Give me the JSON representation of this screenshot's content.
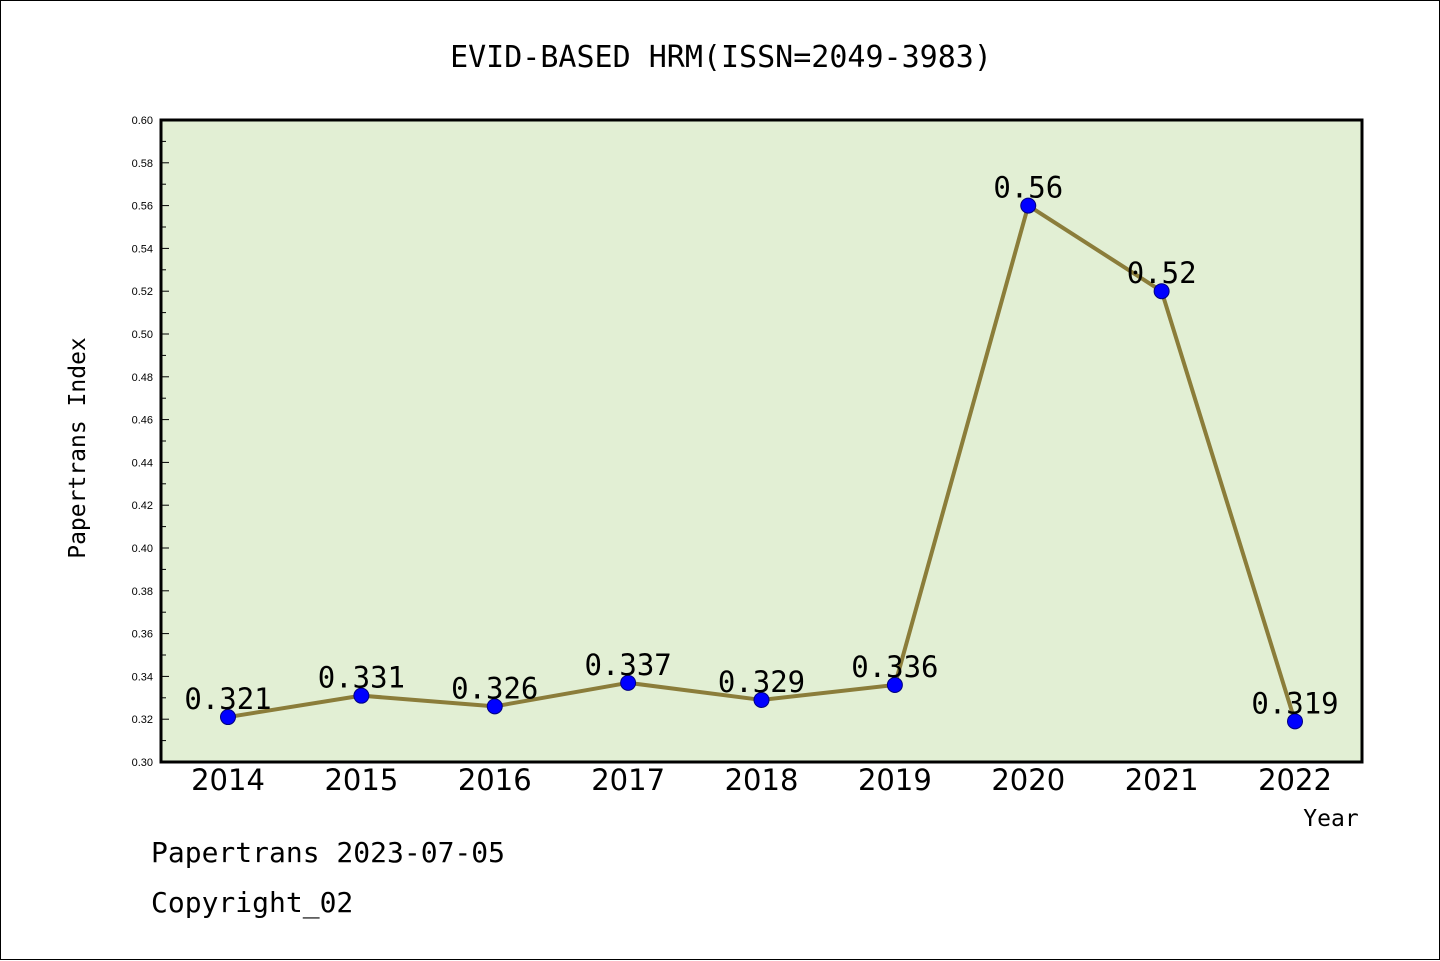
{
  "chart_data": {
    "type": "line",
    "title": "EVID-BASED HRM(ISSN=2049-3983)",
    "xlabel": "Year",
    "ylabel": "Papertrans Index",
    "categories": [
      "2014",
      "2015",
      "2016",
      "2017",
      "2018",
      "2019",
      "2020",
      "2021",
      "2022"
    ],
    "series": [
      {
        "values": [
          0.321,
          0.331,
          0.326,
          0.337,
          0.329,
          0.336,
          0.56,
          0.52,
          0.319
        ],
        "labels": [
          "0.321",
          "0.331",
          "0.326",
          "0.337",
          "0.329",
          "0.336",
          "0.56",
          "0.52",
          "0.319"
        ]
      }
    ],
    "ylim": [
      0.3,
      0.6
    ],
    "yticks": [
      "0.30",
      "0.32",
      "0.34",
      "0.36",
      "0.38",
      "0.40",
      "0.42",
      "0.44",
      "0.46",
      "0.48",
      "0.50",
      "0.52",
      "0.54",
      "0.56",
      "0.58",
      "0.60"
    ],
    "grid": false,
    "colors": {
      "plot_background": "#e2efd4",
      "line": "#8b7d3a",
      "marker": "#0000ff"
    }
  },
  "footer": {
    "line1": "Papertrans 2023-07-05",
    "line2": "Copyright_02"
  }
}
